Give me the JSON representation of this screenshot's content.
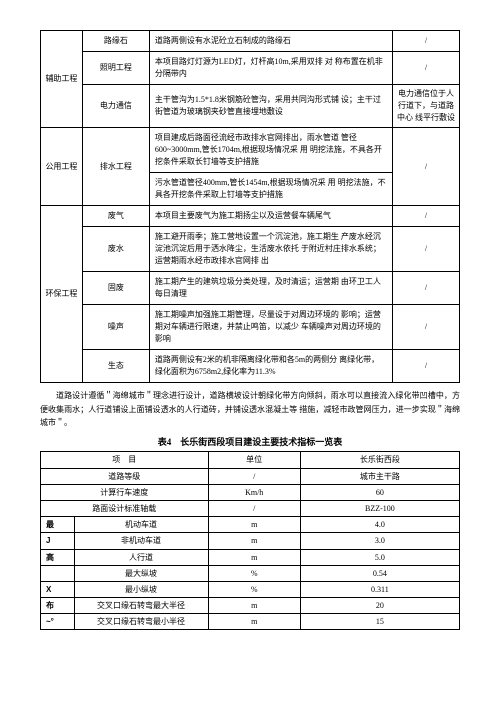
{
  "table1": {
    "groups": [
      {
        "cat": "辅助工程",
        "rows": [
          {
            "name": "路缘石",
            "desc": "道路两侧设有水泥砼立石制成的路缘石",
            "note": "/"
          },
          {
            "name": "照明工程",
            "desc": "本项目路灯灯源为LED灯，灯杆高10m,采用双排 对 称布置在机非分隔带内",
            "note": "/"
          },
          {
            "name": "电力通信",
            "desc": "主干管沟为1.5*1.8米钢筋砼管沟，采用共同沟形式铺 设；主干过街管道为玻璃钢夹砂管直接埋地敷设",
            "note": "电力通信位于人行道下，与道路中心 线平行敷设"
          }
        ]
      },
      {
        "cat": "公用工程",
        "rows": [
          {
            "name": "排水工程",
            "desc": "项目建成后路面径流经市政排水官网排出，雨水管道 管径600~3000mm,管长1704m,根据现场情况采 用 明挖法施，不具各开挖条件采取长钉墙等支护措施\n污水管道管径400mm,管长1454m,根据现场情况采 用 明挖法施，不具各开挖条件采取上钉墙等支护措施",
            "note": "/"
          }
        ]
      },
      {
        "cat": "环保工程",
        "rows": [
          {
            "name": "废气",
            "desc": "本项目主要废气为施工期扬尘以及运营餐车辆尾气",
            "note": "/"
          },
          {
            "name": "废水",
            "desc": "施工避开雨季；施工营地设置一个沉淀池，施工期生 产废水经沉淀池沉淀后用于洒水降尘，生活废水依托 于附近村庄排水系统；运营期雨水经市政排水官网排 出",
            "note": "/"
          },
          {
            "name": "固废",
            "desc": "施工期产生的建筑垃圾分类处理，及时清运；运营期 由环卫工人每日清理",
            "note": "/"
          },
          {
            "name": "噪声",
            "desc": "施工期噪声加强施工期管理，尽量设于对周边环境的 影响；运营期对车辆进行限速，并禁止鸣笛，以减少 车辆噪声对周边环境的影响",
            "note": "/"
          },
          {
            "name": "生态",
            "desc": "道路两侧设有2米的机非隔离绿化带和各5m的两侧分 离绿化带，绿化面积为6758m2,绿化率为11.3%",
            "note": "/"
          }
        ]
      }
    ]
  },
  "paragraph": "道路设计遵循＂海绵城市＂理念进行设计，道路横坡设计朝绿化带方向倾斜，雨水可以直接流入绿化带凹槽中，方便收集雨水；人行道铺设上面铺设透水的人行道砖，并铺设透水混凝土等 措施，减轻市政管网压力，进一步实现＂海绵城市＂。",
  "table2": {
    "title": "表4　长乐街西段项目建设主要技术指标一览表",
    "header": [
      "项　目",
      "单位",
      "长乐街西段"
    ],
    "rows": [
      {
        "c1": "道路等级",
        "c2": "/",
        "c3": "城市主干路"
      },
      {
        "c1": "计算行车速度",
        "c2": "Km/h",
        "c3": "60"
      },
      {
        "c1": "路面设计标准轴载",
        "c2": "/",
        "c3": "BZZ-100"
      },
      {
        "c1a": "最",
        "c1b": "机动车道",
        "c2": "m",
        "c3": "4.0"
      },
      {
        "c1a": "J",
        "c1b": "非机动车道",
        "c2": "m",
        "c3": "3.0"
      },
      {
        "c1a": "高",
        "c1b": "人行道",
        "c2": "m",
        "c3": "5.0"
      },
      {
        "c1a": "",
        "c1b": "最大纵坡",
        "c2": "%",
        "c3": "0.54"
      },
      {
        "c1a": "X",
        "c1b": "最小纵坡",
        "c2": "%",
        "c3": "0.311"
      },
      {
        "c1a": "布",
        "c1b": "交叉口缘石转弯最大半径",
        "c2": "m",
        "c3": "20"
      },
      {
        "c1a": "~°",
        "c1b": "交叉口缘石转弯最小半径",
        "c2": "m",
        "c3": "15"
      }
    ]
  }
}
